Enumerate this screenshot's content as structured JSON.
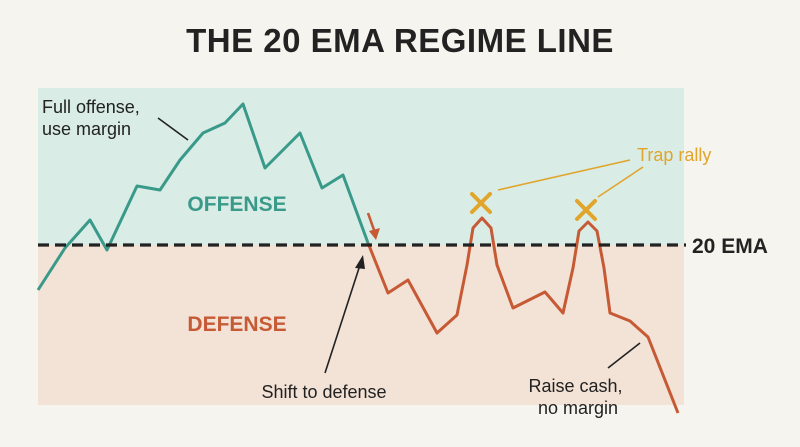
{
  "title": "THE 20 EMA REGIME LINE",
  "regimes": {
    "offense": {
      "label": "OFFENSE",
      "color": "#3a9a8a",
      "band_color": "#d9ece6"
    },
    "defense": {
      "label": "DEFENSE",
      "color": "#c65a35",
      "band_color": "#f3e2d6"
    }
  },
  "ema_line": {
    "label": "20 EMA"
  },
  "annotations": {
    "full_offense": "Full offense,\nuse margin",
    "shift": "Shift to defense",
    "raise_cash": "Raise cash,\nno margin",
    "trap_rally": "Trap rally"
  },
  "colors": {
    "trap": "#e0a52a",
    "text": "#222222",
    "pointer": "#222222"
  }
}
